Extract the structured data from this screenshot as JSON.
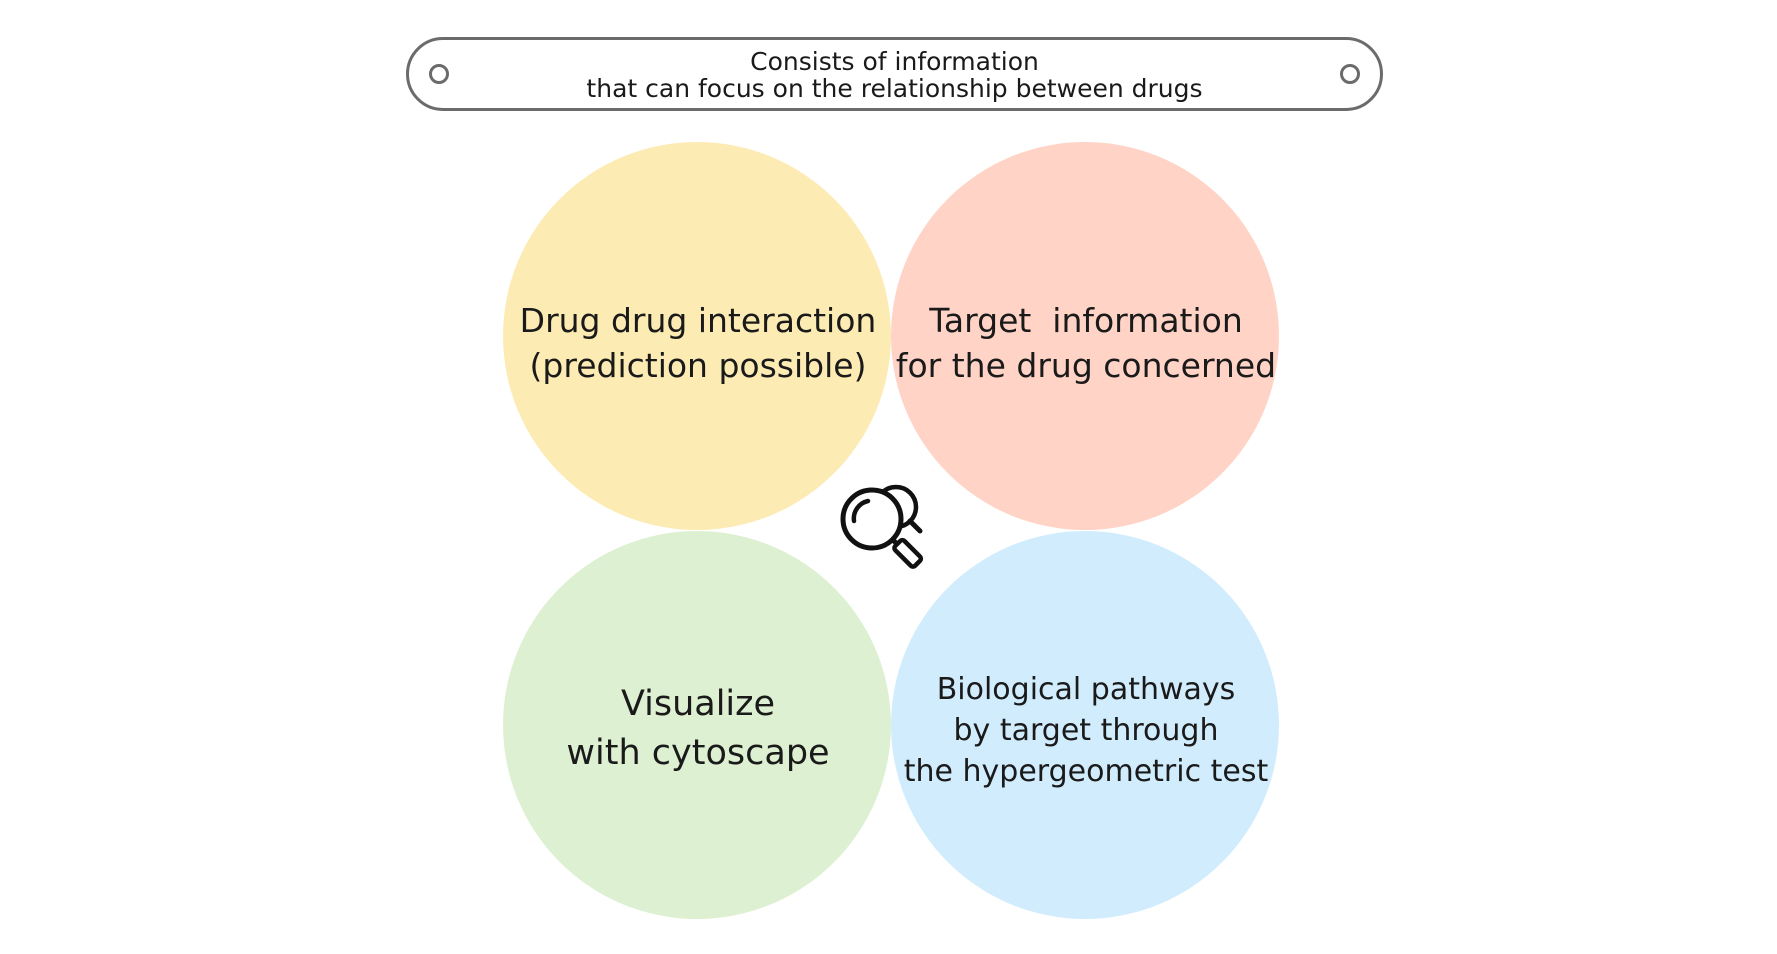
{
  "banner": {
    "line1": "Consists of information",
    "line2": "that can focus on the relationship between drugs"
  },
  "quadrants": {
    "top_left": {
      "line1": "Drug drug interaction",
      "line2": "(prediction possible)",
      "color": "#fdebb4"
    },
    "top_right": {
      "line1": "Target  information",
      "line2": "for the drug concerned",
      "color": "#ffd3c5"
    },
    "bottom_left": {
      "line1": "Visualize",
      "line2": "with cytoscape",
      "color": "#ddf1d2"
    },
    "bottom_right": {
      "line1": "Biological pathways",
      "line2": "by target through",
      "line3": "the hypergeometric test",
      "color": "#d1edfd"
    }
  },
  "center": {
    "icon": "magnifier-icon"
  },
  "colors": {
    "outline": "#6b6b6b",
    "text": "#1a1a1a",
    "icon": "#111111"
  }
}
